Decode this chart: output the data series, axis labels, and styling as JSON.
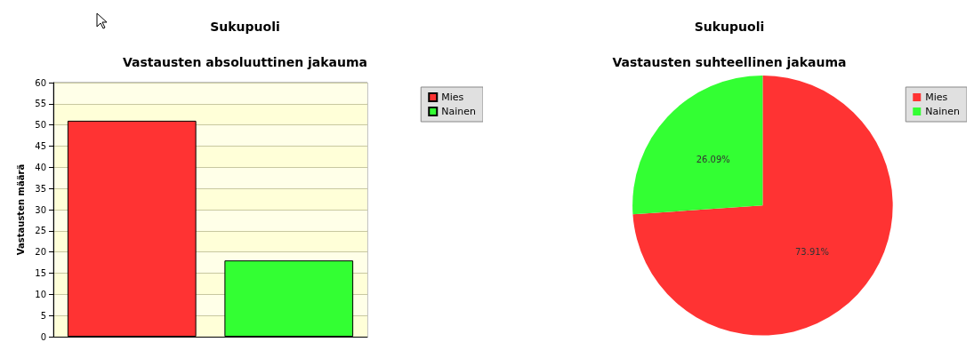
{
  "chart_data": [
    {
      "type": "bar",
      "title": "Sukupuoli",
      "subtitle": "Vastausten absoluuttinen jakauma",
      "ylabel": "Vastausten määrä",
      "categories": [
        null,
        null
      ],
      "series": [
        {
          "name": "Mies",
          "color": "#ff3333",
          "values": [
            51,
            null
          ]
        },
        {
          "name": "Nainen",
          "color": "#33ff33",
          "values": [
            null,
            18
          ]
        }
      ],
      "ylim": [
        0,
        60
      ],
      "yticks": [
        0,
        5,
        10,
        15,
        20,
        25,
        30,
        35,
        40,
        45,
        50,
        55,
        60
      ],
      "grid": "y",
      "legend": "top right"
    },
    {
      "type": "pie",
      "title": "Sukupuoli",
      "subtitle": "Vastausten suhteellinen jakauma",
      "categories": [
        "Mies",
        "Nainen"
      ],
      "values": [
        73.91,
        26.09
      ],
      "colors": [
        "#ff3333",
        "#33ff33"
      ],
      "value_labels": [
        "73.91%",
        "26.09%"
      ],
      "legend": "top right"
    }
  ]
}
